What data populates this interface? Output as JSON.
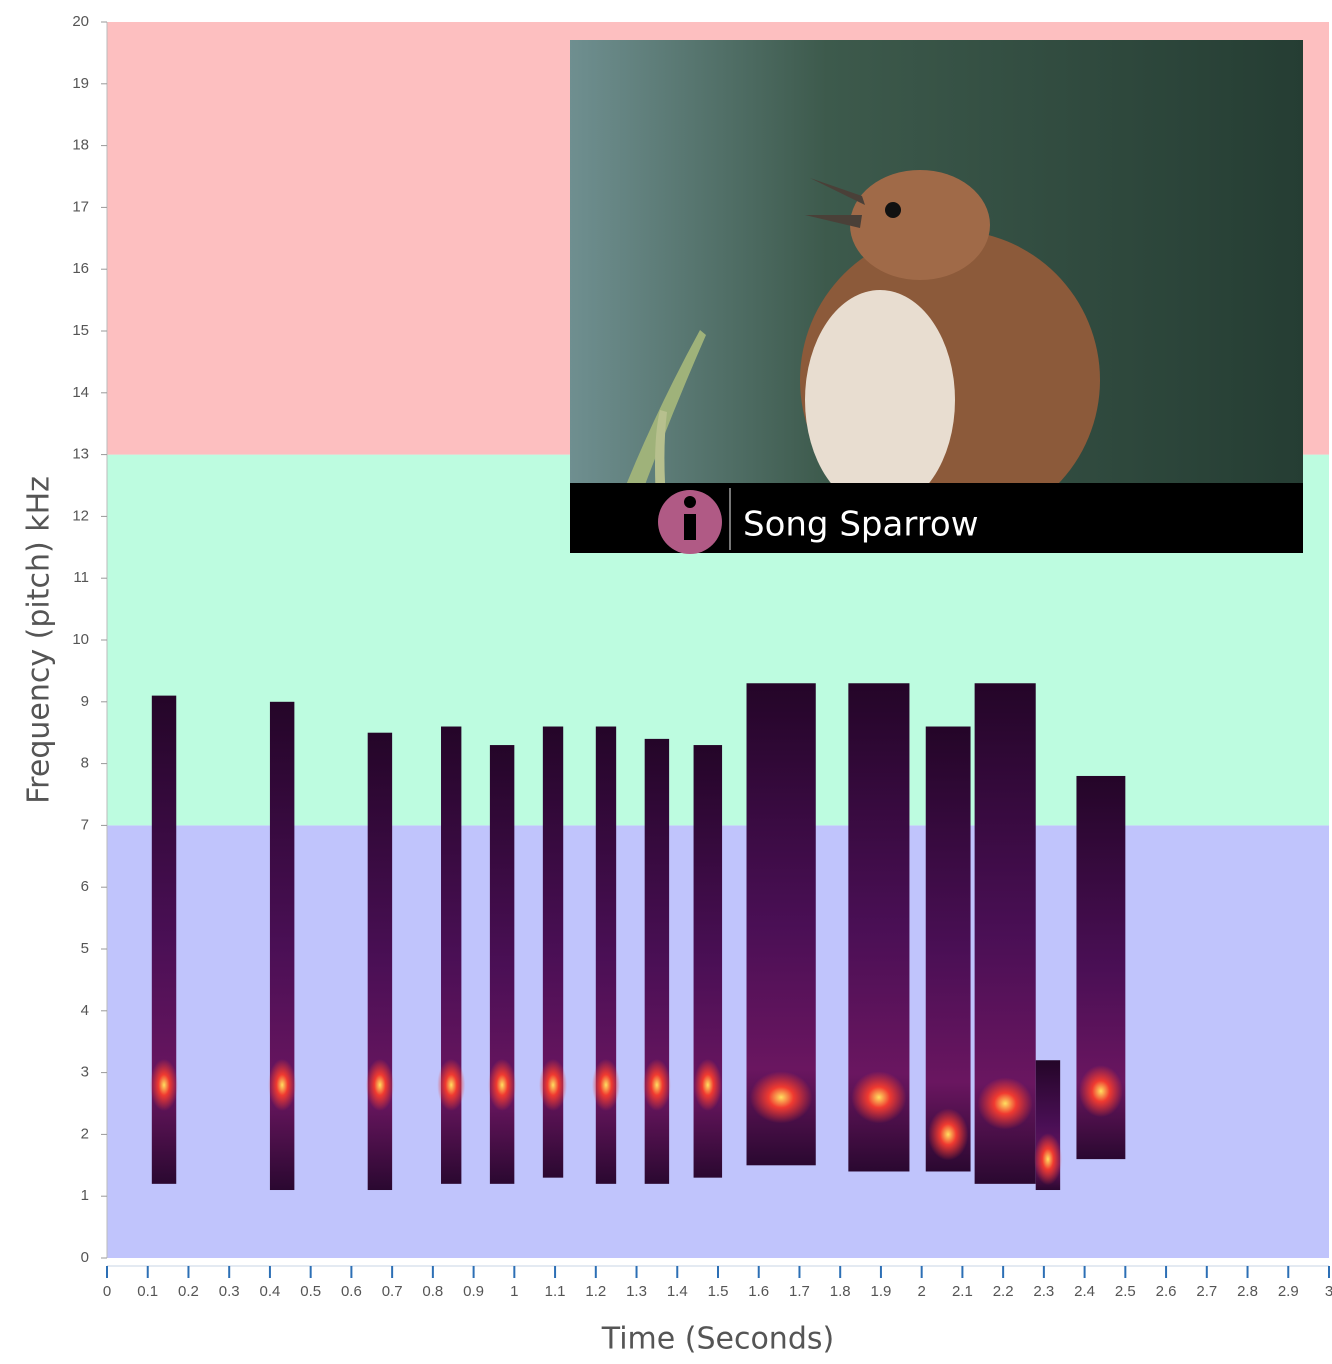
{
  "chart_data": {
    "type": "spectrogram",
    "xlabel": "Time (Seconds)",
    "ylabel": "Frequency (pitch) kHz",
    "xlim": [
      0,
      3
    ],
    "xticks": [
      0,
      0.1,
      0.2,
      0.3,
      0.4,
      0.5,
      0.6,
      0.7,
      0.8,
      0.9,
      1,
      1.1,
      1.2,
      1.3,
      1.4,
      1.5,
      1.6,
      1.7,
      1.8,
      1.9,
      2,
      2.1,
      2.2,
      2.3,
      2.4,
      2.5,
      2.6,
      2.7,
      2.8,
      2.9,
      3
    ],
    "ylim": [
      0,
      20
    ],
    "yticks": [
      0,
      1,
      2,
      3,
      4,
      5,
      6,
      7,
      8,
      9,
      10,
      11,
      12,
      13,
      14,
      15,
      16,
      17,
      18,
      19,
      20
    ],
    "bands": [
      {
        "from": 0,
        "to": 7,
        "color": "#c0c4fc"
      },
      {
        "from": 7,
        "to": 13,
        "color": "#bdfce0"
      },
      {
        "from": 13,
        "to": 20,
        "color": "#fdbfc0"
      }
    ],
    "syllables": [
      {
        "t0": 0.11,
        "t1": 0.17,
        "f0": 1.2,
        "f1": 9.1,
        "peak": 2.8
      },
      {
        "t0": 0.4,
        "t1": 0.46,
        "f0": 1.1,
        "f1": 9.0,
        "peak": 2.8
      },
      {
        "t0": 0.64,
        "t1": 0.7,
        "f0": 1.1,
        "f1": 8.5,
        "peak": 2.8
      },
      {
        "t0": 0.82,
        "t1": 0.87,
        "f0": 1.2,
        "f1": 8.6,
        "peak": 2.8
      },
      {
        "t0": 0.94,
        "t1": 1.0,
        "f0": 1.2,
        "f1": 8.3,
        "peak": 2.8
      },
      {
        "t0": 1.07,
        "t1": 1.12,
        "f0": 1.3,
        "f1": 8.6,
        "peak": 2.8
      },
      {
        "t0": 1.2,
        "t1": 1.25,
        "f0": 1.2,
        "f1": 8.6,
        "peak": 2.8
      },
      {
        "t0": 1.32,
        "t1": 1.38,
        "f0": 1.2,
        "f1": 8.4,
        "peak": 2.8
      },
      {
        "t0": 1.44,
        "t1": 1.51,
        "f0": 1.3,
        "f1": 8.3,
        "peak": 2.8
      },
      {
        "t0": 1.57,
        "t1": 1.74,
        "f0": 1.5,
        "f1": 9.3,
        "peak": 2.6
      },
      {
        "t0": 1.82,
        "t1": 1.97,
        "f0": 1.4,
        "f1": 9.3,
        "peak": 2.6
      },
      {
        "t0": 2.01,
        "t1": 2.12,
        "f0": 1.4,
        "f1": 8.6,
        "peak": 2.0
      },
      {
        "t0": 2.13,
        "t1": 2.28,
        "f0": 1.2,
        "f1": 9.3,
        "peak": 2.5
      },
      {
        "t0": 2.28,
        "t1": 2.34,
        "f0": 1.1,
        "f1": 3.2,
        "peak": 1.6
      },
      {
        "t0": 2.38,
        "t1": 2.5,
        "f0": 1.6,
        "f1": 7.8,
        "peak": 2.7
      }
    ]
  },
  "inset": {
    "caption": "Song Sparrow"
  }
}
